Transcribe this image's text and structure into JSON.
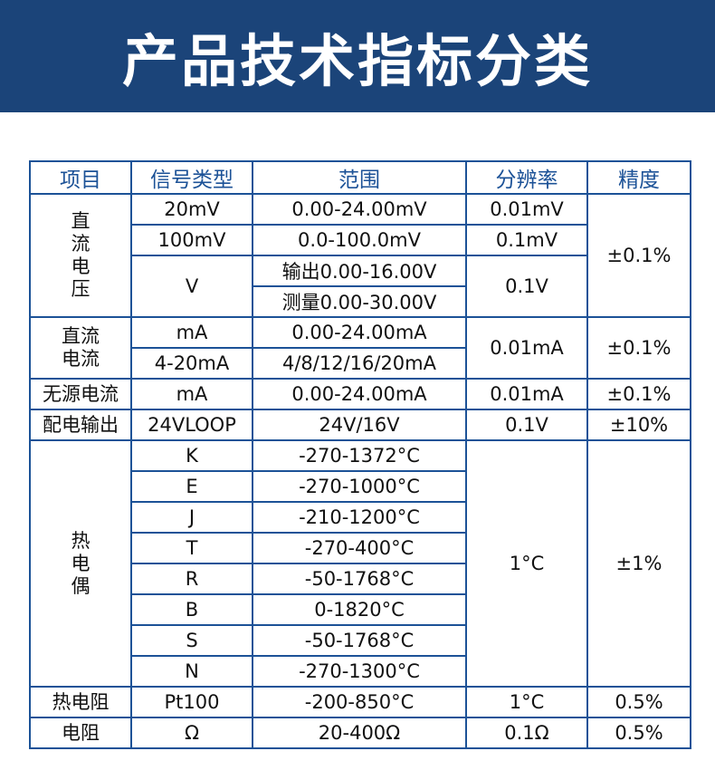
{
  "banner": {
    "title": "产品技术指标分类"
  },
  "table": {
    "headers": [
      "项目",
      "信号类型",
      "范围",
      "分辨率",
      "精度"
    ],
    "dc_voltage": {
      "category": [
        "直",
        "流",
        "电",
        "压"
      ],
      "rows": [
        {
          "signal": "20mV",
          "range": "0.00-24.00mV",
          "resolution": "0.01mV"
        },
        {
          "signal": "100mV",
          "range": "0.0-100.0mV",
          "resolution": "0.1mV"
        }
      ],
      "v_signal": "V",
      "v_range_output": "输出0.00-16.00V",
      "v_range_measure": "测量0.00-30.00V",
      "v_resolution": "0.1V",
      "accuracy": "±0.1%"
    },
    "dc_current": {
      "category": [
        "直流",
        "电流"
      ],
      "rows": [
        {
          "signal": "mA",
          "range": "0.00-24.00mA"
        },
        {
          "signal": "4-20mA",
          "range": "4/8/12/16/20mA"
        }
      ],
      "resolution": "0.01mA",
      "accuracy": "±0.1%"
    },
    "passive_current": {
      "category": "无源电流",
      "signal": "mA",
      "range": "0.00-24.00mA",
      "resolution": "0.01mA",
      "accuracy": "±0.1%"
    },
    "power_output": {
      "category": "配电输出",
      "signal": "24VLOOP",
      "range": "24V/16V",
      "resolution": "0.1V",
      "accuracy": "±10%"
    },
    "thermocouple": {
      "category": [
        "热",
        "电",
        "偶"
      ],
      "rows": [
        {
          "signal": "K",
          "range": "-270-1372°C"
        },
        {
          "signal": "E",
          "range": "-270-1000°C"
        },
        {
          "signal": "J",
          "range": "-210-1200°C"
        },
        {
          "signal": "T",
          "range": "-270-400°C"
        },
        {
          "signal": "R",
          "range": "-50-1768°C"
        },
        {
          "signal": "B",
          "range": "0-1820°C"
        },
        {
          "signal": "S",
          "range": "-50-1768°C"
        },
        {
          "signal": "N",
          "range": "-270-1300°C"
        }
      ],
      "resolution": "1°C",
      "accuracy": "±1%"
    },
    "rtd": {
      "category": "热电阻",
      "signal": "Pt100",
      "range": "-200-850°C",
      "resolution": "1°C",
      "accuracy": "0.5%"
    },
    "resistance": {
      "category": "电阻",
      "signal": "Ω",
      "range": "20-400Ω",
      "resolution": "0.1Ω",
      "accuracy": "0.5%"
    }
  }
}
